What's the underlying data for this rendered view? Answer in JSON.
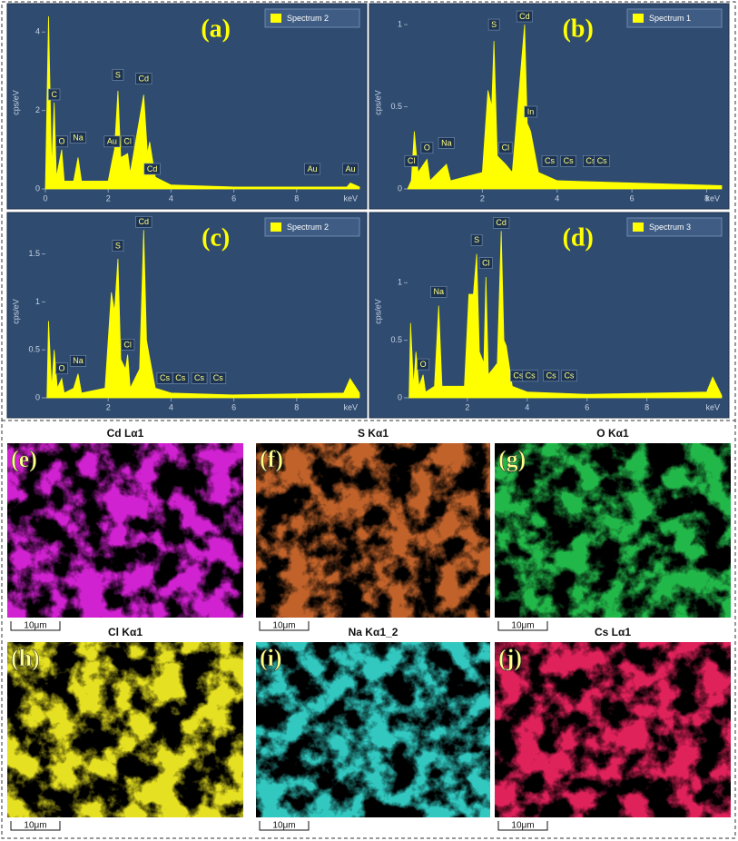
{
  "chart_data": [
    {
      "type": "line",
      "panel_label": "(a)",
      "xlabel": "keV",
      "ylabel": "cps/eV",
      "xlim": [
        0,
        10
      ],
      "ylim": [
        0,
        4.4
      ],
      "xticks": [
        0,
        2,
        4,
        6,
        8
      ],
      "yticks": [
        0,
        2,
        4
      ],
      "x": [
        0,
        0.1,
        0.2,
        0.28,
        0.35,
        0.52,
        0.6,
        0.9,
        1.04,
        1.15,
        2.0,
        2.12,
        2.2,
        2.31,
        2.4,
        2.62,
        2.7,
        3.13,
        3.25,
        3.32,
        3.5,
        4,
        6,
        9.6,
        9.71,
        10
      ],
      "series": [
        {
          "name": "Spectrum 2",
          "color": "#ffff00",
          "values": [
            0,
            4.4,
            0.5,
            2.2,
            0.3,
            1.0,
            0.2,
            0.2,
            0.8,
            0.2,
            0.2,
            0.7,
            1.0,
            2.5,
            0.8,
            0.9,
            0.4,
            2.4,
            0.9,
            1.2,
            0.3,
            0.1,
            0.05,
            0.05,
            0.15,
            0.05
          ]
        }
      ],
      "annotations": [
        {
          "text": "C",
          "x": 0.28,
          "y": 2.2
        },
        {
          "text": "O",
          "x": 0.52,
          "y": 1.0
        },
        {
          "text": "Na",
          "x": 1.04,
          "y": 1.1
        },
        {
          "text": "S",
          "x": 2.31,
          "y": 2.7
        },
        {
          "text": "Cd",
          "x": 3.13,
          "y": 2.6
        },
        {
          "text": "Au",
          "x": 2.12,
          "y": 1.0
        },
        {
          "text": "Cl",
          "x": 2.62,
          "y": 1.0
        },
        {
          "text": "Cd",
          "x": 3.4,
          "y": 0.3
        },
        {
          "text": "Au",
          "x": 8.5,
          "y": 0.3
        },
        {
          "text": "Au",
          "x": 9.71,
          "y": 0.3
        }
      ]
    },
    {
      "type": "line",
      "panel_label": "(b)",
      "xlabel": "keV",
      "ylabel": "cps/eV",
      "xlim": [
        0,
        8.4
      ],
      "ylim": [
        0,
        1.05
      ],
      "xticks": [
        2,
        4,
        6,
        8
      ],
      "yticks": [
        0,
        0.5,
        1
      ],
      "x": [
        0,
        0.1,
        0.18,
        0.28,
        0.52,
        0.6,
        1.04,
        1.15,
        2.0,
        2.15,
        2.25,
        2.31,
        2.4,
        2.62,
        2.8,
        3.13,
        3.2,
        3.29,
        3.5,
        4.0,
        8.4
      ],
      "series": [
        {
          "name": "Spectrum 1",
          "color": "#ffff00",
          "values": [
            0,
            0.05,
            0.35,
            0.1,
            0.18,
            0.05,
            0.15,
            0.05,
            0.1,
            0.6,
            0.5,
            0.9,
            0.2,
            0.15,
            0.1,
            1.0,
            0.4,
            0.35,
            0.1,
            0.05,
            0.02
          ]
        }
      ],
      "annotations": [
        {
          "text": "Cl",
          "x": 0.1,
          "y": 0.12
        },
        {
          "text": "O",
          "x": 0.52,
          "y": 0.2
        },
        {
          "text": "Na",
          "x": 1.04,
          "y": 0.23
        },
        {
          "text": "S",
          "x": 2.31,
          "y": 0.95
        },
        {
          "text": "Cd",
          "x": 3.13,
          "y": 1.0
        },
        {
          "text": "In",
          "x": 3.29,
          "y": 0.42
        },
        {
          "text": "Cl",
          "x": 2.62,
          "y": 0.2
        },
        {
          "text": "Cs",
          "x": 3.8,
          "y": 0.12
        },
        {
          "text": "Cs",
          "x": 4.3,
          "y": 0.12
        },
        {
          "text": "Cs",
          "x": 4.9,
          "y": 0.12
        },
        {
          "text": "Cs",
          "x": 5.2,
          "y": 0.12
        }
      ]
    },
    {
      "type": "line",
      "panel_label": "(c)",
      "xlabel": "keV",
      "ylabel": "cps/eV",
      "xlim": [
        0,
        10
      ],
      "ylim": [
        0,
        1.8
      ],
      "xticks": [
        2,
        4,
        6,
        8
      ],
      "yticks": [
        0,
        0.5,
        1,
        1.5
      ],
      "x": [
        0.05,
        0.1,
        0.2,
        0.28,
        0.38,
        0.52,
        0.6,
        0.9,
        1.04,
        1.15,
        1.9,
        2.1,
        2.2,
        2.31,
        2.4,
        2.55,
        2.62,
        2.7,
        3.0,
        3.13,
        3.22,
        3.3,
        3.5,
        4,
        6,
        9.5,
        9.7,
        10
      ],
      "series": [
        {
          "name": "Spectrum 2",
          "color": "#ffff00",
          "values": [
            0,
            0.8,
            0.1,
            0.5,
            0.1,
            0.2,
            0.05,
            0.1,
            0.25,
            0.05,
            0.1,
            1.1,
            0.9,
            1.45,
            0.4,
            0.3,
            0.45,
            0.1,
            0.3,
            1.75,
            0.6,
            0.45,
            0.1,
            0.05,
            0.03,
            0.05,
            0.2,
            0.05
          ]
        }
      ],
      "annotations": [
        {
          "text": "O",
          "x": 0.52,
          "y": 0.22
        },
        {
          "text": "Na",
          "x": 1.04,
          "y": 0.3
        },
        {
          "text": "S",
          "x": 2.31,
          "y": 1.5
        },
        {
          "text": "Cd",
          "x": 3.13,
          "y": 1.75
        },
        {
          "text": "Cl",
          "x": 2.62,
          "y": 0.47
        },
        {
          "text": "Cs",
          "x": 3.8,
          "y": 0.12
        },
        {
          "text": "Cs",
          "x": 4.3,
          "y": 0.12
        },
        {
          "text": "Cs",
          "x": 4.9,
          "y": 0.12
        },
        {
          "text": "Cs",
          "x": 5.5,
          "y": 0.12
        }
      ]
    },
    {
      "type": "line",
      "panel_label": "(d)",
      "xlabel": "keV",
      "ylabel": "cps/eV",
      "xlim": [
        0,
        10.5
      ],
      "ylim": [
        0,
        1.5
      ],
      "xticks": [
        2,
        4,
        6,
        8
      ],
      "yticks": [
        0,
        0.5,
        1
      ],
      "x": [
        0.05,
        0.1,
        0.2,
        0.28,
        0.38,
        0.52,
        0.6,
        0.9,
        1.04,
        1.15,
        1.9,
        2.05,
        2.2,
        2.31,
        2.4,
        2.55,
        2.62,
        2.7,
        3.0,
        3.13,
        3.22,
        3.3,
        3.5,
        4,
        6,
        10.0,
        10.2,
        10.5
      ],
      "series": [
        {
          "name": "Spectrum 3",
          "color": "#ffff00",
          "values": [
            0,
            0.65,
            0.1,
            0.4,
            0.1,
            0.2,
            0.05,
            0.1,
            0.8,
            0.1,
            0.1,
            0.9,
            0.9,
            1.25,
            0.4,
            0.3,
            1.05,
            0.2,
            0.3,
            1.45,
            0.5,
            0.45,
            0.1,
            0.05,
            0.03,
            0.05,
            0.18,
            0.02
          ]
        }
      ],
      "annotations": [
        {
          "text": "O",
          "x": 0.52,
          "y": 0.22
        },
        {
          "text": "Na",
          "x": 1.04,
          "y": 0.85
        },
        {
          "text": "S",
          "x": 2.31,
          "y": 1.3
        },
        {
          "text": "Cl",
          "x": 2.62,
          "y": 1.1
        },
        {
          "text": "Cd",
          "x": 3.13,
          "y": 1.45
        },
        {
          "text": "Cs",
          "x": 3.7,
          "y": 0.12
        },
        {
          "text": "Cs",
          "x": 4.1,
          "y": 0.12
        },
        {
          "text": "Cs",
          "x": 4.8,
          "y": 0.12
        },
        {
          "text": "Cs",
          "x": 5.4,
          "y": 0.12
        }
      ]
    }
  ],
  "element_maps": [
    {
      "label": "(e)",
      "title": "Cd Lα1",
      "scale_bar": "10μm",
      "color": "#d020d0"
    },
    {
      "label": "(f)",
      "title": "S Kα1",
      "scale_bar": "10μm",
      "color": "#c0622a"
    },
    {
      "label": "(g)",
      "title": "O Kα1",
      "scale_bar": "10μm",
      "color": "#22b84a"
    },
    {
      "label": "(h)",
      "title": "Cl Kα1",
      "scale_bar": "10μm",
      "color": "#e6e020"
    },
    {
      "label": "(i)",
      "title": "Na Kα1_2",
      "scale_bar": "10μm",
      "color": "#30c8c0"
    },
    {
      "label": "(j)",
      "title": "Cs Lα1",
      "scale_bar": "10μm",
      "color": "#e0205a"
    }
  ]
}
